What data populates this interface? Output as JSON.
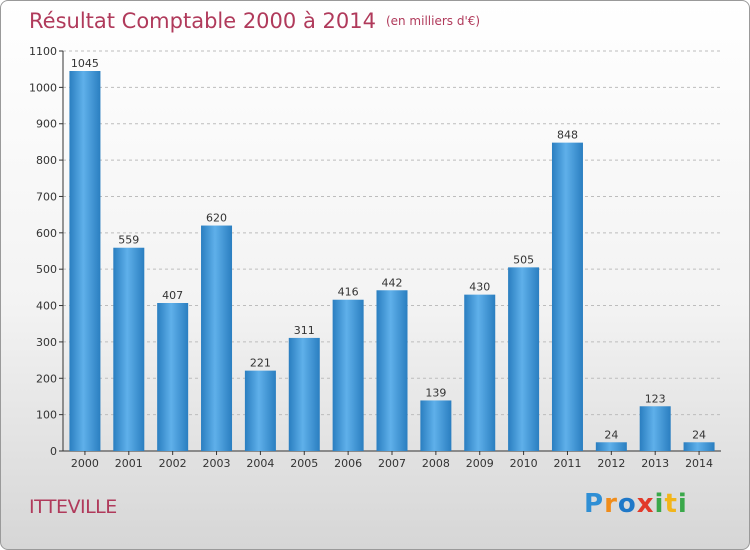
{
  "header": {
    "title": "Résultat Comptable 2000 à 2014",
    "subtitle": "(en milliers d'€)"
  },
  "commune": "ITTEVILLE",
  "logo": {
    "text": "Proxiti",
    "letters": [
      "P",
      "r",
      "o",
      "x",
      "i",
      "t",
      "i"
    ]
  },
  "colors": {
    "title": "#b03a5b",
    "bar_light": "#5fb0ea",
    "bar_dark": "#2a7ec0"
  },
  "chart_data": {
    "type": "bar",
    "title": "Résultat Comptable 2000 à 2014",
    "xlabel": "",
    "ylabel": "",
    "categories": [
      "2000",
      "2001",
      "2002",
      "2003",
      "2004",
      "2005",
      "2006",
      "2007",
      "2008",
      "2009",
      "2010",
      "2011",
      "2012",
      "2013",
      "2014"
    ],
    "values": [
      1045,
      559,
      407,
      620,
      221,
      311,
      416,
      442,
      139,
      430,
      505,
      848,
      24,
      123,
      24
    ],
    "ylim": [
      0,
      1100
    ],
    "yticks": [
      0,
      100,
      200,
      300,
      400,
      500,
      600,
      700,
      800,
      900,
      1000,
      1100
    ],
    "grid": true
  }
}
